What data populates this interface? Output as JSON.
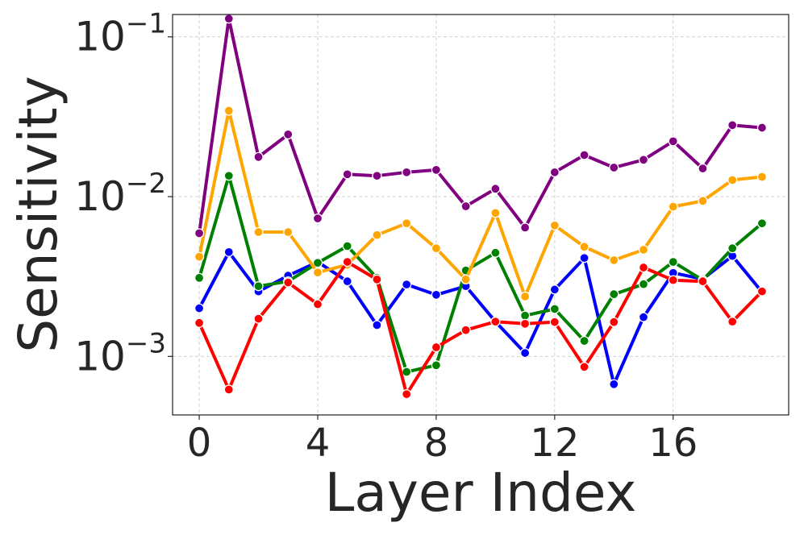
{
  "chart_data": {
    "type": "line",
    "xlabel": "Layer Index",
    "ylabel": "Sensitivity",
    "yscale": "log",
    "grid": true,
    "legend": "none",
    "xlim": [
      -0.9,
      19.9
    ],
    "ylim": [
      0.00043,
      0.138
    ],
    "x": [
      0,
      1,
      2,
      3,
      4,
      5,
      6,
      7,
      8,
      9,
      10,
      11,
      12,
      13,
      14,
      15,
      16,
      17,
      18,
      19
    ],
    "x_ticks": [
      {
        "value": 0,
        "label": "0"
      },
      {
        "value": 4,
        "label": "4"
      },
      {
        "value": 8,
        "label": "8"
      },
      {
        "value": 12,
        "label": "12"
      },
      {
        "value": 16,
        "label": "16"
      }
    ],
    "y_ticks": [
      {
        "value": 0.001,
        "base": "10",
        "exp": "−3"
      },
      {
        "value": 0.01,
        "base": "10",
        "exp": "−2"
      },
      {
        "value": 0.1,
        "base": "10",
        "exp": "−1"
      }
    ],
    "series": [
      {
        "color": "#0000ff",
        "values": [
          0.002,
          0.0045,
          0.00255,
          0.0032,
          0.0039,
          0.00295,
          0.00157,
          0.00282,
          0.00243,
          0.00275,
          0.00165,
          0.00105,
          0.00262,
          0.00413,
          0.00067,
          0.00176,
          0.00333,
          0.00305,
          0.00425,
          0.00253
        ]
      },
      {
        "color": "#008000",
        "values": [
          0.0031,
          0.0135,
          0.00275,
          0.00295,
          0.00385,
          0.0049,
          0.0031,
          0.0008,
          0.00088,
          0.00345,
          0.00445,
          0.0018,
          0.00198,
          0.00125,
          0.00245,
          0.00283,
          0.0039,
          0.003,
          0.00475,
          0.0068
        ]
      },
      {
        "color": "#ffa500",
        "values": [
          0.0042,
          0.0345,
          0.006,
          0.006,
          0.00335,
          0.00375,
          0.00575,
          0.0068,
          0.00475,
          0.00303,
          0.0079,
          0.00237,
          0.0066,
          0.00485,
          0.004,
          0.00465,
          0.00865,
          0.0094,
          0.0127,
          0.0133
        ]
      },
      {
        "color": "#ff0000",
        "values": [
          0.00162,
          0.00062,
          0.00172,
          0.0029,
          0.00212,
          0.0039,
          0.00303,
          0.00058,
          0.00114,
          0.00146,
          0.00165,
          0.0016,
          0.00164,
          0.00086,
          0.00164,
          0.0036,
          0.003,
          0.00295,
          0.00165,
          0.00255
        ]
      },
      {
        "color": "#800080",
        "values": [
          0.0059,
          0.13,
          0.0177,
          0.0245,
          0.0073,
          0.0138,
          0.0135,
          0.0142,
          0.0147,
          0.0087,
          0.0112,
          0.0064,
          0.0142,
          0.0182,
          0.0152,
          0.017,
          0.0222,
          0.015,
          0.028,
          0.027
        ]
      }
    ]
  }
}
